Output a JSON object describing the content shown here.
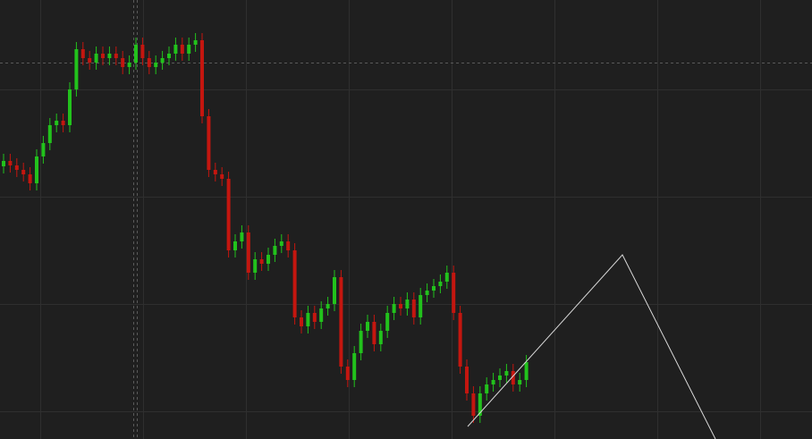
{
  "chart_data": {
    "type": "candlestick",
    "up_color": "#22c21c",
    "down_color": "#c4160f",
    "ylim": [
      0,
      491
    ],
    "open": [
      305,
      311,
      306,
      301,
      296,
      286,
      316,
      331,
      351,
      356,
      351,
      391,
      436,
      426,
      421,
      431,
      426,
      431,
      426,
      416,
      421,
      441,
      426,
      416,
      421,
      426,
      431,
      441,
      431,
      441,
      446,
      361,
      301,
      296,
      291,
      211,
      221,
      231,
      186,
      201,
      196,
      206,
      216,
      221,
      211,
      136,
      126,
      141,
      131,
      146,
      151,
      181,
      81,
      66,
      96,
      121,
      131,
      106,
      121,
      141,
      151,
      146,
      156,
      136,
      161,
      166,
      171,
      176,
      186,
      141,
      81,
      51,
      26,
      51,
      61,
      66,
      71,
      76,
      61,
      66
    ],
    "high": [
      319,
      319,
      314,
      309,
      304,
      324,
      339,
      359,
      364,
      364,
      399,
      444,
      444,
      434,
      439,
      439,
      439,
      439,
      434,
      429,
      449,
      449,
      434,
      429,
      434,
      439,
      449,
      449,
      449,
      454,
      454,
      369,
      309,
      304,
      299,
      229,
      239,
      239,
      209,
      209,
      214,
      224,
      229,
      229,
      219,
      144,
      149,
      149,
      154,
      159,
      189,
      189,
      89,
      104,
      129,
      139,
      139,
      129,
      149,
      159,
      159,
      164,
      164,
      169,
      174,
      179,
      184,
      194,
      194,
      149,
      89,
      59,
      59,
      69,
      74,
      79,
      84,
      84,
      74,
      94
    ],
    "low": [
      297,
      298,
      293,
      288,
      278,
      278,
      308,
      323,
      343,
      343,
      343,
      383,
      418,
      413,
      413,
      418,
      418,
      418,
      408,
      408,
      413,
      418,
      408,
      408,
      413,
      418,
      423,
      423,
      423,
      433,
      353,
      293,
      288,
      283,
      203,
      203,
      213,
      178,
      178,
      188,
      188,
      198,
      208,
      203,
      128,
      118,
      118,
      123,
      123,
      138,
      143,
      73,
      58,
      58,
      88,
      113,
      98,
      98,
      113,
      133,
      138,
      138,
      128,
      128,
      153,
      158,
      163,
      168,
      133,
      73,
      43,
      18,
      18,
      43,
      53,
      58,
      63,
      53,
      53,
      58
    ],
    "close": [
      311,
      306,
      301,
      296,
      286,
      316,
      331,
      351,
      356,
      351,
      391,
      436,
      426,
      421,
      431,
      426,
      431,
      426,
      416,
      421,
      441,
      426,
      416,
      421,
      426,
      431,
      441,
      431,
      441,
      446,
      361,
      301,
      296,
      291,
      211,
      221,
      231,
      186,
      201,
      196,
      206,
      216,
      221,
      211,
      136,
      126,
      141,
      131,
      146,
      151,
      181,
      81,
      66,
      96,
      121,
      131,
      106,
      121,
      141,
      151,
      146,
      156,
      136,
      161,
      166,
      171,
      176,
      186,
      141,
      81,
      51,
      26,
      51,
      61,
      66,
      71,
      76,
      61,
      66,
      86
    ]
  }
}
